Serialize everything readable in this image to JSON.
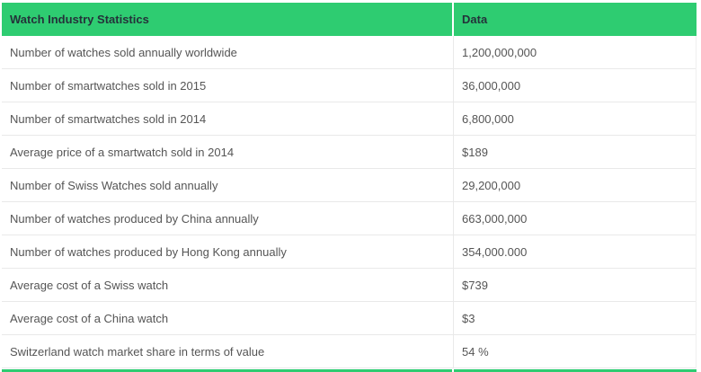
{
  "colors": {
    "header_bg": "#2ecc71",
    "header_text": "#24323a",
    "body_text": "#555555",
    "row_border": "#e9e9e9",
    "page_bg": "#ffffff"
  },
  "chart_data": {
    "type": "table",
    "title": "Watch Industry Statistics",
    "columns": [
      "Watch Industry Statistics",
      "Data"
    ],
    "rows": [
      [
        "Number of watches sold annually worldwide",
        "1,200,000,000"
      ],
      [
        "Number of smartwatches sold in 2015",
        "36,000,000"
      ],
      [
        "Number of smartwatches sold in 2014",
        "6,800,000"
      ],
      [
        "Average price of a smartwatch sold in 2014",
        "$189"
      ],
      [
        "Number of Swiss Watches sold annually",
        "29,200,000"
      ],
      [
        "Number of watches produced by China annually",
        "663,000,000"
      ],
      [
        "Number of watches produced by Hong Kong annually",
        "354,000.000"
      ],
      [
        "Average cost of a Swiss watch",
        "$739"
      ],
      [
        "Average cost of a China watch",
        "$3"
      ],
      [
        "Switzerland watch market share in terms of value",
        "54 %"
      ]
    ]
  }
}
